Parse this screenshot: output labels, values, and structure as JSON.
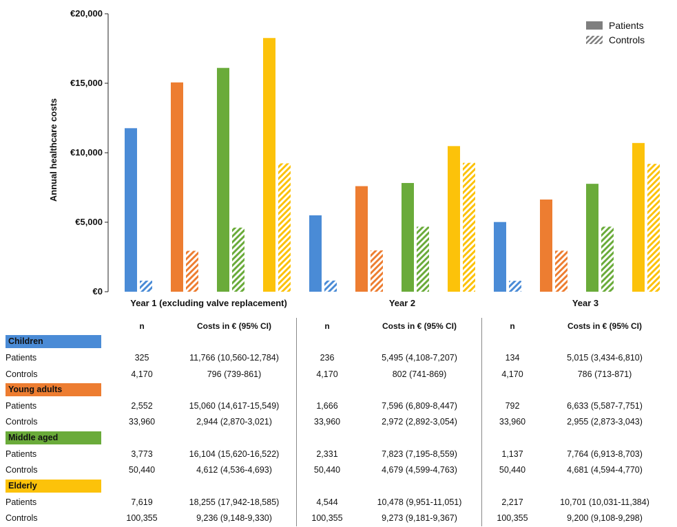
{
  "chart_data": {
    "type": "bar",
    "ylabel": "Annual healthcare costs",
    "ylim": [
      0,
      20000
    ],
    "y_ticks": [
      "€0",
      "€5,000",
      "€10,000",
      "€15,000",
      "€20,000"
    ],
    "y_tick_values": [
      0,
      5000,
      10000,
      15000,
      20000
    ],
    "grid": false,
    "legend_placement": "top-right",
    "legend": [
      "Patients",
      "Controls"
    ],
    "categories": [
      "Year 1 (excluding valve replacement)",
      "Year 2",
      "Year 3"
    ],
    "group_names": [
      "Children",
      "Young adults",
      "Middle aged",
      "Elderly"
    ],
    "group_colors": [
      "#4a8bd6",
      "#ed7d31",
      "#6aab3a",
      "#fcc20a"
    ],
    "series": [
      {
        "name": "Children - Patients",
        "values": [
          11766,
          5495,
          5015
        ]
      },
      {
        "name": "Children - Controls",
        "values": [
          796,
          802,
          786
        ]
      },
      {
        "name": "Young adults - Patients",
        "values": [
          15060,
          7596,
          6633
        ]
      },
      {
        "name": "Young adults - Controls",
        "values": [
          2944,
          2972,
          2955
        ]
      },
      {
        "name": "Middle aged - Patients",
        "values": [
          16104,
          7823,
          7764
        ]
      },
      {
        "name": "Middle aged - Controls",
        "values": [
          4612,
          4679,
          4681
        ]
      },
      {
        "name": "Elderly - Patients",
        "values": [
          18255,
          10478,
          10701
        ]
      },
      {
        "name": "Elderly - Controls",
        "values": [
          9236,
          9273,
          9200
        ]
      }
    ]
  },
  "table": {
    "headers": [
      "n",
      "Costs in € (95% CI)",
      "n",
      "Costs in € (95% CI)",
      "n",
      "Costs in € (95% CI)"
    ],
    "groups": [
      {
        "name": "Children",
        "color": "#4a8bd6",
        "rows": [
          {
            "label": "Patients",
            "cells": [
              "325",
              "11,766 (10,560-12,784)",
              "236",
              "5,495 (4,108-7,207)",
              "134",
              "5,015 (3,434-6,810)"
            ]
          },
          {
            "label": "Controls",
            "cells": [
              "4,170",
              "796 (739-861)",
              "4,170",
              "802 (741-869)",
              "4,170",
              "786 (713-871)"
            ]
          }
        ]
      },
      {
        "name": "Young adults",
        "color": "#ed7d31",
        "rows": [
          {
            "label": "Patients",
            "cells": [
              "2,552",
              "15,060 (14,617-15,549)",
              "1,666",
              "7,596 (6,809-8,447)",
              "792",
              "6,633 (5,587-7,751)"
            ]
          },
          {
            "label": "Controls",
            "cells": [
              "33,960",
              "2,944 (2,870-3,021)",
              "33,960",
              "2,972 (2,892-3,054)",
              "33,960",
              "2,955 (2,873-3,043)"
            ]
          }
        ]
      },
      {
        "name": "Middle aged",
        "color": "#6aab3a",
        "rows": [
          {
            "label": "Patients",
            "cells": [
              "3,773",
              "16,104 (15,620-16,522)",
              "2,331",
              "7,823 (7,195-8,559)",
              "1,137",
              "7,764 (6,913-8,703)"
            ]
          },
          {
            "label": "Controls",
            "cells": [
              "50,440",
              "4,612 (4,536-4,693)",
              "50,440",
              "4,679 (4,599-4,763)",
              "50,440",
              "4,681 (4,594-4,770)"
            ]
          }
        ]
      },
      {
        "name": "Elderly",
        "color": "#fcc20a",
        "rows": [
          {
            "label": "Patients",
            "cells": [
              "7,619",
              "18,255 (17,942-18,585)",
              "4,544",
              "10,478 (9,951-11,051)",
              "2,217",
              "10,701 (10,031-11,384)"
            ]
          },
          {
            "label": "Controls",
            "cells": [
              "100,355",
              "9,236 (9,148-9,330)",
              "100,355",
              "9,273 (9,181-9,367)",
              "100,355",
              "9,200 (9,108-9,298)"
            ]
          }
        ]
      }
    ]
  }
}
